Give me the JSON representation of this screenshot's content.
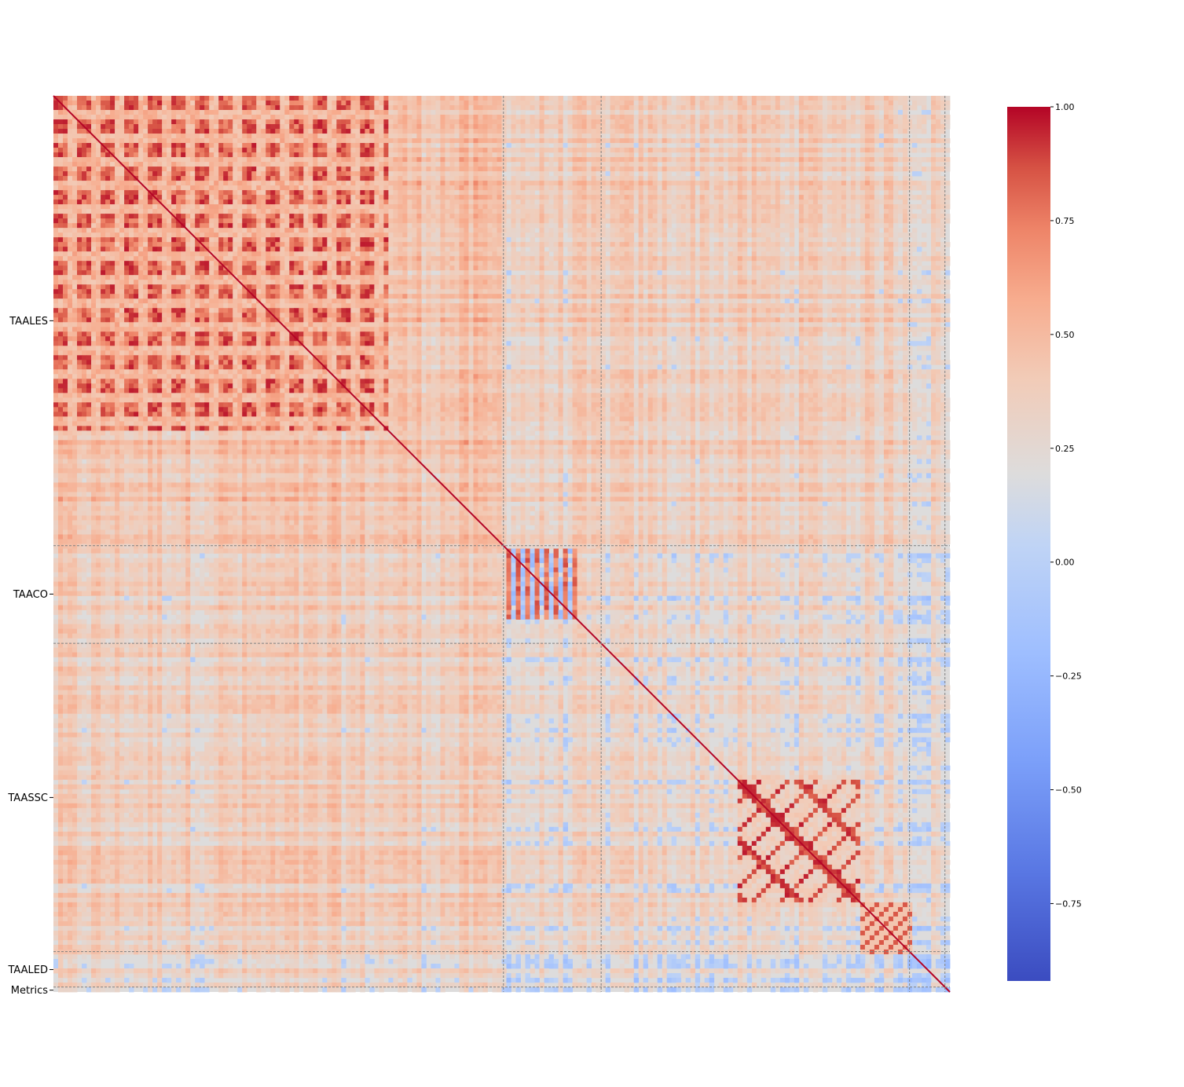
{
  "chart_data": {
    "type": "heatmap",
    "title": "",
    "xlabel": "",
    "ylabel": "",
    "groups": [
      {
        "name": "TAALES",
        "start": 0.0,
        "end": 0.502
      },
      {
        "name": "TAACO",
        "start": 0.502,
        "end": 0.611
      },
      {
        "name": "TAASSC",
        "start": 0.611,
        "end": 0.955
      },
      {
        "name": "TAALED",
        "start": 0.955,
        "end": 0.9945
      },
      {
        "name": "Metrics",
        "start": 0.9945,
        "end": 1.0
      }
    ],
    "blocks": [
      {
        "group": "TAALES",
        "sub": [
          {
            "from": 0.0,
            "to": 0.08,
            "value": 0.55
          },
          {
            "from": 0.08,
            "to": 0.15,
            "value": 0.6
          },
          {
            "from": 0.15,
            "to": 0.37,
            "value": 0.75
          },
          {
            "from": 0.37,
            "to": 0.25,
            "value": 0.7
          }
        ]
      }
    ],
    "colorbar": {
      "min": -0.92,
      "max": 1.0,
      "ticks": [
        1.0,
        0.75,
        0.5,
        0.25,
        0.0,
        -0.25,
        -0.5,
        -0.75
      ],
      "tick_labels": [
        "1.00",
        "0.75",
        "0.50",
        "0.25",
        "0.00",
        "−0.25",
        "−0.50",
        "−0.75"
      ],
      "colormap": "coolwarm"
    },
    "grid": false,
    "group_separators": "dashed-gray"
  },
  "colors": {
    "diagonal": "#b40426",
    "neutral": "#dddcdc",
    "separator": "#808080"
  }
}
